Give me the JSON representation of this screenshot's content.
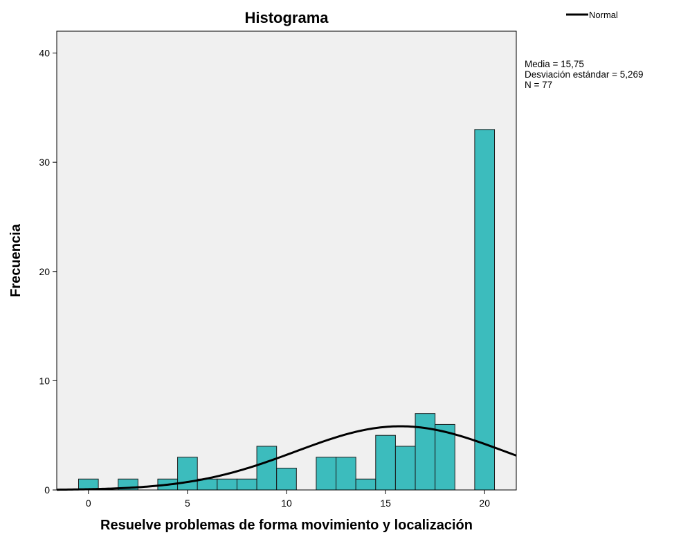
{
  "chart_data": {
    "type": "bar",
    "title": "Histograma",
    "xlabel": "Resuelve problemas de forma movimiento y localización",
    "ylabel": "Frecuencia",
    "xlim": [
      -1.6,
      21.6
    ],
    "ylim": [
      0,
      42
    ],
    "x_ticks": [
      0,
      5,
      10,
      15,
      20
    ],
    "y_ticks": [
      0,
      10,
      20,
      30,
      40
    ],
    "bin_width": 1,
    "bins": [
      {
        "x": 0,
        "value": 1
      },
      {
        "x": 2,
        "value": 1
      },
      {
        "x": 4,
        "value": 1
      },
      {
        "x": 5,
        "value": 3
      },
      {
        "x": 6,
        "value": 1
      },
      {
        "x": 7,
        "value": 1
      },
      {
        "x": 8,
        "value": 1
      },
      {
        "x": 9,
        "value": 4
      },
      {
        "x": 10,
        "value": 2
      },
      {
        "x": 12,
        "value": 3
      },
      {
        "x": 13,
        "value": 3
      },
      {
        "x": 14,
        "value": 1
      },
      {
        "x": 15,
        "value": 5
      },
      {
        "x": 16,
        "value": 4
      },
      {
        "x": 17,
        "value": 7
      },
      {
        "x": 18,
        "value": 6
      },
      {
        "x": 20,
        "value": 33
      }
    ],
    "normal_curve": {
      "name": "Normal",
      "mean": 15.75,
      "sd": 5.269,
      "n": 77
    },
    "bar_color": "#3cbcbd",
    "plot_background": "#f0f0f0",
    "legend": {
      "label": "Normal",
      "position": "top-right"
    },
    "stats_lines": [
      "Media = 15,75",
      "Desviación estándar = 5,269",
      "N = 77"
    ]
  }
}
